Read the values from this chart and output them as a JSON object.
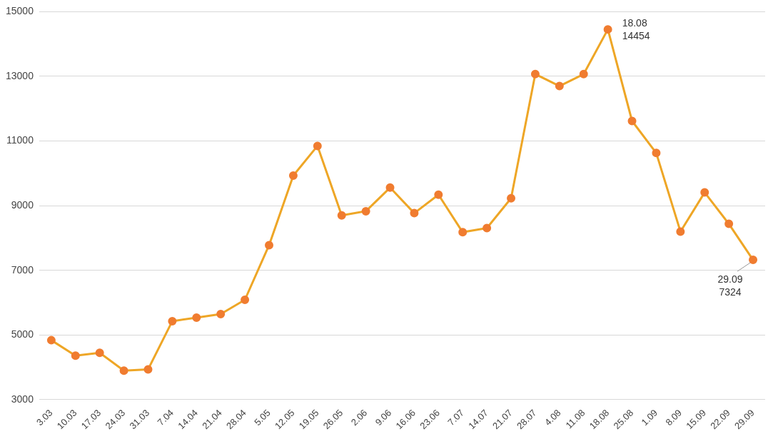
{
  "chart_data": {
    "type": "line",
    "categories": [
      "3.03",
      "10.03",
      "17.03",
      "24.03",
      "31.03",
      "7.04",
      "14.04",
      "21.04",
      "28.04",
      "5.05",
      "12.05",
      "19.05",
      "26.05",
      "2.06",
      "9.06",
      "16.06",
      "23.06",
      "7.07",
      "14.07",
      "21.07",
      "28.07",
      "4.08",
      "11.08",
      "18.08",
      "25.08",
      "1.09",
      "8.09",
      "15.09",
      "22.09",
      "29.09"
    ],
    "series": [
      {
        "color": "#eea626",
        "values": [
          4840,
          4360,
          4450,
          3900,
          3940,
          5430,
          5540,
          5650,
          6090,
          7780,
          9930,
          10850,
          8700,
          8830,
          9560,
          8770,
          9340,
          8180,
          8310,
          9230,
          13070,
          12700,
          13070,
          14454,
          11620,
          10630,
          8200,
          9410,
          8440,
          7324
        ]
      }
    ],
    "ylim": [
      3000,
      15000
    ],
    "yticks": [
      3000,
      5000,
      7000,
      9000,
      11000,
      13000,
      15000
    ],
    "grid": "y",
    "legend": false,
    "marker": "circle",
    "line_style": "solid",
    "annotations": [
      {
        "text": "18.08\n14454",
        "x": "18.08",
        "y": 14454
      },
      {
        "text": "29.09\n7324",
        "x": "29.09",
        "y": 7324
      }
    ]
  }
}
